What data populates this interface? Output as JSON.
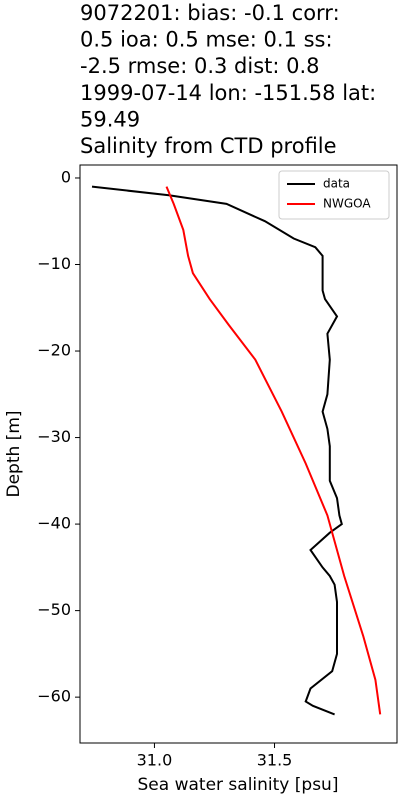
{
  "chart_data": {
    "type": "line",
    "title": [
      "9072201: bias: -0.1  corr:",
      "0.5  ioa: 0.5  mse: 0.1  ss:",
      "-2.5  rmse: 0.3  dist: 0.8",
      "1999-07-14 lon: -151.58 lat:",
      "59.49",
      "Salinity from CTD profile"
    ],
    "x_label": "Sea water salinity [psu]",
    "y_label": "Depth [m]",
    "xlim": [
      30.69,
      32.01
    ],
    "ylim": [
      -65.3,
      1.5
    ],
    "xticks": [
      {
        "value": 31.0,
        "label": "31.0"
      },
      31.5
    ],
    "yticks": [
      0,
      {
        "value": -10,
        "label": "−10"
      },
      {
        "value": -20,
        "label": "−20"
      },
      {
        "value": -30,
        "label": "−30"
      },
      {
        "value": -40,
        "label": "−40"
      },
      {
        "value": -50,
        "label": "−50"
      },
      {
        "value": -60,
        "label": "−60"
      }
    ],
    "legend": "upper right",
    "series": [
      {
        "name": "data",
        "color": "#000000",
        "x": [
          30.74,
          31.06,
          31.3,
          31.46,
          31.58,
          31.67,
          31.7,
          31.7,
          31.7,
          31.7,
          31.71,
          31.76,
          31.72,
          31.73,
          31.72,
          31.7,
          31.72,
          31.73,
          31.73,
          31.76,
          31.77,
          31.78,
          31.73,
          31.65,
          31.7,
          31.73,
          31.75,
          31.76,
          31.76,
          31.74,
          31.65,
          31.63,
          31.66,
          31.75
        ],
        "values": [
          -1,
          -2,
          -3,
          -5,
          -7,
          -8,
          -9,
          -10,
          -12,
          -13,
          -14,
          -16,
          -18,
          -21,
          -25,
          -27,
          -29,
          -31,
          -35,
          -37,
          -39,
          -40,
          -41,
          -43,
          -45,
          -46,
          -47,
          -49,
          -55,
          -57,
          -59,
          -60.5,
          -61,
          -62
        ]
      },
      {
        "name": "NWGOA",
        "color": "#ff0000",
        "x": [
          31.05,
          31.08,
          31.12,
          31.14,
          31.16,
          31.23,
          31.31,
          31.42,
          31.53,
          31.63,
          31.72,
          31.79,
          31.87,
          31.92,
          31.94
        ],
        "values": [
          -1,
          -3,
          -6,
          -9,
          -11,
          -14,
          -17,
          -21,
          -27,
          -33,
          -39,
          -46,
          -53,
          -58,
          -62
        ]
      }
    ]
  }
}
